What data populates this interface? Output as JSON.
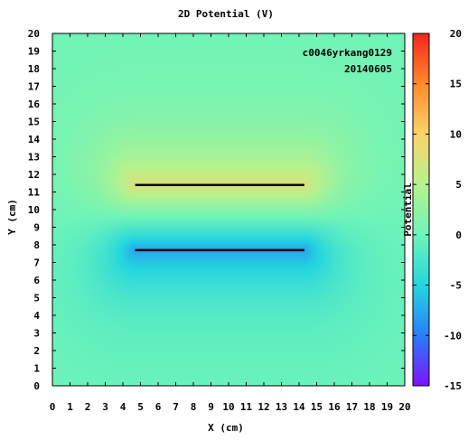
{
  "chart_data": {
    "type": "heatmap",
    "title": "2D Potential (V)",
    "xlabel": "X (cm)",
    "ylabel": "Y (cm)",
    "xlim": [
      0,
      20
    ],
    "ylim": [
      0,
      20
    ],
    "xticks": [
      0,
      1,
      2,
      3,
      4,
      5,
      6,
      7,
      8,
      9,
      10,
      11,
      12,
      13,
      14,
      15,
      16,
      17,
      18,
      19,
      20
    ],
    "yticks": [
      0,
      1,
      2,
      3,
      4,
      5,
      6,
      7,
      8,
      9,
      10,
      11,
      12,
      13,
      14,
      15,
      16,
      17,
      18,
      19,
      20
    ],
    "colorbar": {
      "label": "Potential",
      "range": [
        -15,
        20
      ],
      "ticks": [
        -15,
        -10,
        -5,
        0,
        5,
        10,
        15,
        20
      ],
      "colormap": "rainbow",
      "colors": [
        "#7b12ff",
        "#2a7ef7",
        "#24d6e0",
        "#6ef4b8",
        "#b6f28e",
        "#fbd36a",
        "#ff8a2e",
        "#f5251a"
      ]
    },
    "conductors": [
      {
        "label": "upper plate",
        "x": [
          4.7,
          14.3
        ],
        "y": 11.4,
        "potential": 10
      },
      {
        "label": "lower plate",
        "x": [
          4.7,
          14.3
        ],
        "y": 7.7,
        "potential": -10
      }
    ],
    "annotations": [
      "c0046yrkang0129",
      "20140605"
    ],
    "background_potential": 0,
    "extremes": {
      "max": 8.5,
      "min": -13
    },
    "grid": false
  }
}
